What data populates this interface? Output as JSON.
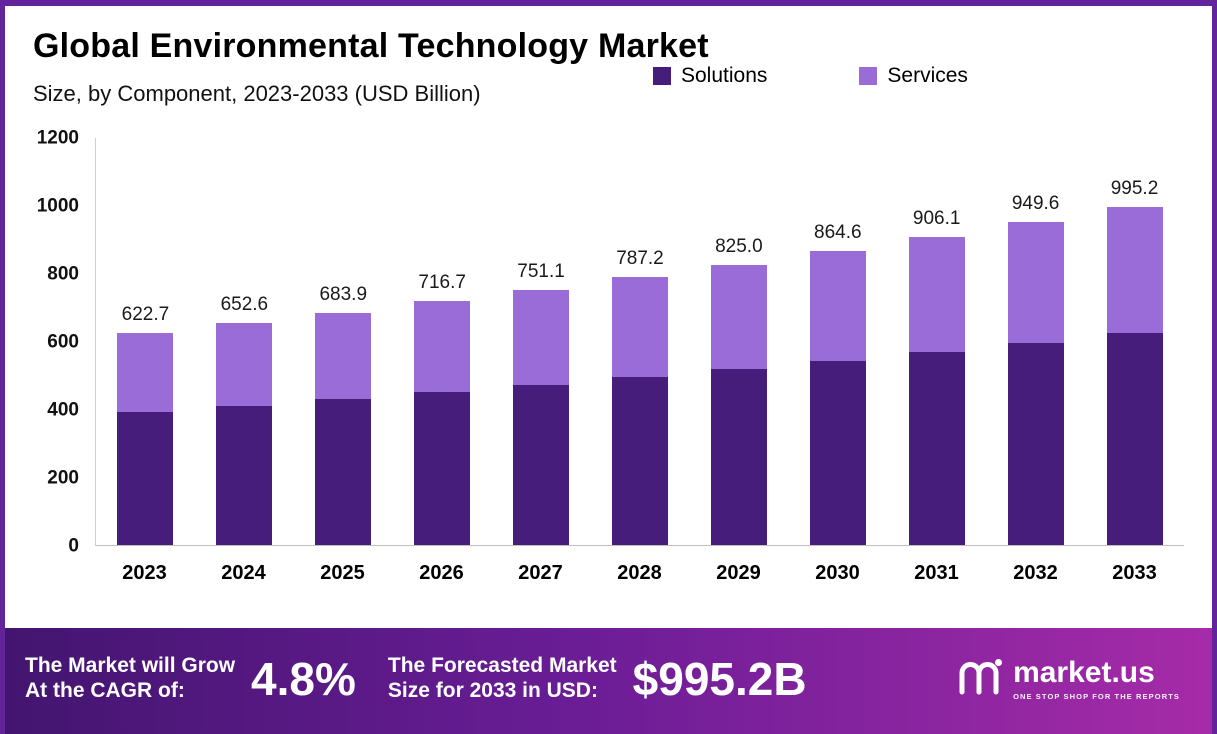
{
  "header": {
    "title": "Global Environmental Technology Market",
    "subtitle": "Size, by Component, 2023-2033 (USD Billion)"
  },
  "chart_data": {
    "type": "bar",
    "stacked": true,
    "title": "Global Environmental Technology Market Size, by Component, 2023-2033 (USD Billion)",
    "categories": [
      "2023",
      "2024",
      "2025",
      "2026",
      "2027",
      "2028",
      "2029",
      "2030",
      "2031",
      "2032",
      "2033"
    ],
    "series": [
      {
        "name": "Solutions",
        "color": "#471d7c",
        "values": [
          390.4,
          409.2,
          428.8,
          449.4,
          470.9,
          493.6,
          517.3,
          542.1,
          568.1,
          595.4,
          624.0
        ]
      },
      {
        "name": "Services",
        "color": "#9a6cd8",
        "values": [
          232.3,
          243.4,
          255.1,
          267.3,
          280.2,
          293.6,
          307.7,
          322.5,
          338.0,
          354.2,
          371.2
        ]
      }
    ],
    "totals": [
      622.7,
      652.6,
      683.9,
      716.7,
      751.1,
      787.2,
      825.0,
      864.6,
      906.1,
      949.6,
      995.2
    ],
    "total_labels": [
      "622.7",
      "652.6",
      "683.9",
      "716.7",
      "751.1",
      "787.2",
      "825.0",
      "864.6",
      "906.1",
      "949.6",
      "995.2"
    ],
    "xlabel": "",
    "ylabel": "",
    "ylim": [
      0,
      1200
    ],
    "yticks": [
      0,
      200,
      400,
      600,
      800,
      1000,
      1200
    ],
    "grid": false,
    "legend_position": "top-right"
  },
  "footer": {
    "cagr_label_line1": "The Market will Grow",
    "cagr_label_line2": "At the CAGR of:",
    "cagr_value": "4.8%",
    "forecast_label_line1": "The Forecasted Market",
    "forecast_label_line2": "Size for 2033 in USD:",
    "forecast_value": "$995.2B",
    "brand": "market.us",
    "brand_tagline": "ONE STOP SHOP FOR THE REPORTS"
  },
  "colors": {
    "solutions": "#471d7c",
    "services": "#9a6cd8",
    "frame_border": "#63249b",
    "banner_gradient_start": "#431570",
    "banner_gradient_end": "#a62ba8"
  }
}
